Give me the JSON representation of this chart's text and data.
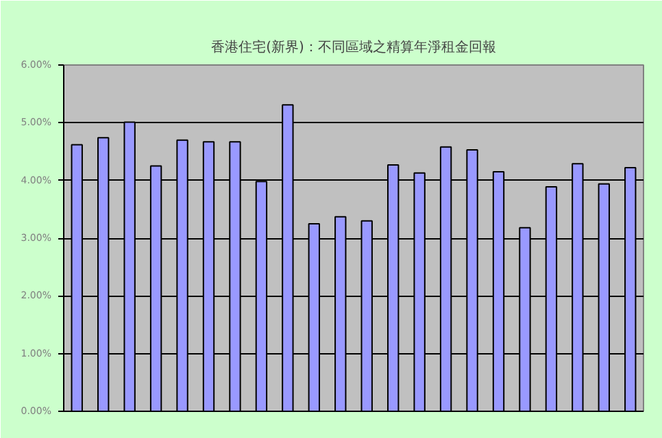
{
  "chart_data": {
    "type": "bar",
    "title": "香港住宅(新界)：不同區域之精算年淨租金回報",
    "categories": [
      null,
      null,
      null,
      null,
      null,
      null,
      null,
      null,
      null,
      null,
      null,
      null,
      null,
      null,
      null,
      null,
      null,
      null,
      null,
      null,
      null,
      null
    ],
    "values": [
      4.62,
      4.74,
      5.01,
      4.25,
      4.7,
      4.67,
      4.67,
      3.98,
      5.31,
      3.25,
      3.37,
      3.3,
      4.27,
      4.13,
      4.58,
      4.53,
      4.15,
      3.18,
      3.89,
      4.29,
      3.94,
      4.22
    ],
    "color": "#9999ff",
    "ylim": [
      0,
      6
    ],
    "yticks": [
      {
        "value": 0,
        "label": "0.00%"
      },
      {
        "value": 1,
        "label": "1.00%"
      },
      {
        "value": 2,
        "label": "2.00%"
      },
      {
        "value": 3,
        "label": "3.00%"
      },
      {
        "value": 4,
        "label": "4.00%"
      },
      {
        "value": 5,
        "label": "5.00%"
      },
      {
        "value": 6,
        "label": "6.00%"
      }
    ],
    "grid": "y",
    "tick_labels": "y"
  }
}
